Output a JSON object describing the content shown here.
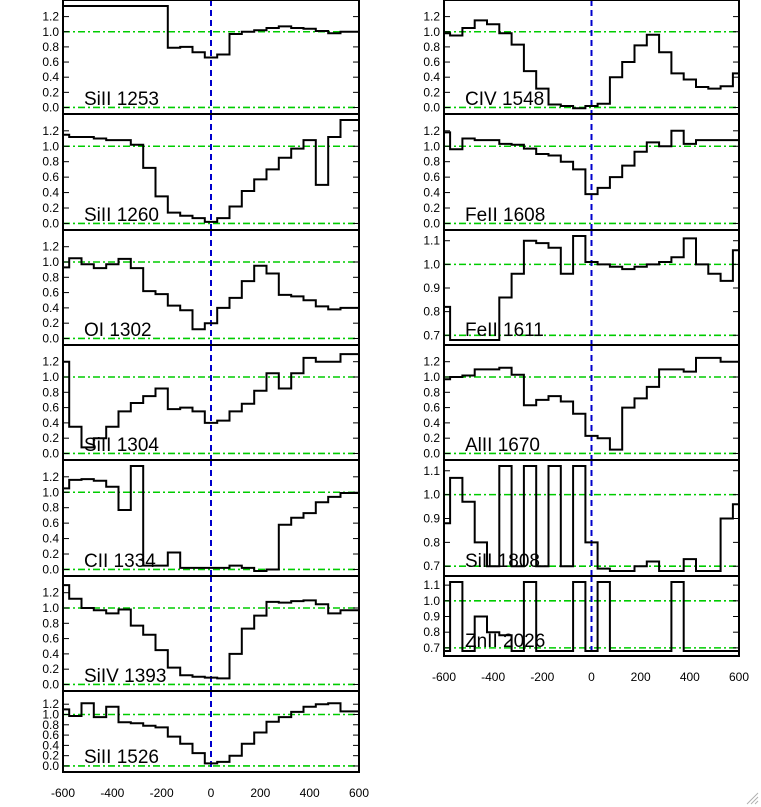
{
  "chart_data": [
    {
      "type": "line",
      "label": "SiII 1253",
      "yticks": [
        "0.0",
        "0.2",
        "0.4",
        "0.6",
        "0.8",
        "1.0",
        "1.2"
      ],
      "ylim": [
        -0.02,
        1.34
      ],
      "x": [
        -600,
        -550,
        -500,
        -450,
        -400,
        -350,
        -300,
        -250,
        -200,
        -150,
        -100,
        -50,
        0,
        50,
        100,
        150,
        200,
        250,
        300,
        350,
        400,
        450,
        500,
        550,
        600
      ],
      "values": [
        1.34,
        1.34,
        1.34,
        1.34,
        1.34,
        1.34,
        1.34,
        1.34,
        1.34,
        0.79,
        0.8,
        0.73,
        0.66,
        0.7,
        0.97,
        1.0,
        1.02,
        1.05,
        1.07,
        1.05,
        1.04,
        1.01,
        0.98,
        1.0,
        1.0
      ]
    },
    {
      "type": "line",
      "label": "SiII 1260",
      "yticks": [
        "0.0",
        "0.2",
        "0.4",
        "0.6",
        "0.8",
        "1.0",
        "1.2"
      ],
      "ylim": [
        -0.02,
        1.34
      ],
      "x": [
        -600,
        -550,
        -500,
        -450,
        -400,
        -350,
        -300,
        -250,
        -200,
        -150,
        -100,
        -50,
        0,
        50,
        100,
        150,
        200,
        250,
        300,
        350,
        400,
        450,
        500,
        550,
        600
      ],
      "values": [
        1.15,
        1.12,
        1.12,
        1.1,
        1.08,
        1.08,
        1.02,
        0.72,
        0.35,
        0.14,
        0.1,
        0.07,
        0.02,
        0.07,
        0.22,
        0.42,
        0.57,
        0.7,
        0.85,
        0.97,
        1.08,
        0.5,
        1.12,
        1.34,
        1.34
      ]
    },
    {
      "type": "line",
      "label": "OI 1302",
      "yticks": [
        "0.0",
        "0.2",
        "0.4",
        "0.6",
        "0.8",
        "1.0",
        "1.2"
      ],
      "ylim": [
        -0.02,
        1.34
      ],
      "x": [
        -600,
        -550,
        -500,
        -450,
        -400,
        -350,
        -300,
        -250,
        -200,
        -150,
        -100,
        -50,
        0,
        50,
        100,
        150,
        200,
        250,
        300,
        350,
        400,
        450,
        500,
        550,
        600
      ],
      "values": [
        0.93,
        1.05,
        0.97,
        0.92,
        0.97,
        1.04,
        0.92,
        0.62,
        0.58,
        0.43,
        0.37,
        0.12,
        0.2,
        0.4,
        0.53,
        0.75,
        0.95,
        0.85,
        0.57,
        0.55,
        0.5,
        0.42,
        0.38,
        0.4,
        0.4
      ]
    },
    {
      "type": "line",
      "label": "SiII 1304",
      "yticks": [
        "0.0",
        "0.2",
        "0.4",
        "0.6",
        "0.8",
        "1.0",
        "1.2"
      ],
      "ylim": [
        -0.02,
        1.34
      ],
      "x": [
        -600,
        -550,
        -500,
        -450,
        -400,
        -350,
        -300,
        -250,
        -200,
        -150,
        -100,
        -50,
        0,
        50,
        100,
        150,
        200,
        250,
        300,
        350,
        400,
        450,
        500,
        550,
        600
      ],
      "values": [
        1.2,
        0.35,
        0.08,
        0.2,
        0.35,
        0.55,
        0.66,
        0.75,
        0.85,
        0.58,
        0.6,
        0.55,
        0.4,
        0.43,
        0.55,
        0.65,
        0.82,
        1.05,
        0.85,
        1.05,
        1.25,
        1.2,
        1.2,
        1.3,
        1.3
      ]
    },
    {
      "type": "line",
      "label": "CII 1334",
      "yticks": [
        "0.0",
        "0.2",
        "0.4",
        "0.6",
        "0.8",
        "1.0",
        "1.2"
      ],
      "ylim": [
        -0.02,
        1.34
      ],
      "x": [
        -600,
        -550,
        -500,
        -450,
        -400,
        -350,
        -300,
        -250,
        -200,
        -150,
        -100,
        -50,
        0,
        50,
        100,
        150,
        200,
        250,
        300,
        350,
        400,
        450,
        500,
        550,
        600
      ],
      "values": [
        1.05,
        1.16,
        1.17,
        1.15,
        1.07,
        0.77,
        1.34,
        0.05,
        0.05,
        0.22,
        0.02,
        0.02,
        0.02,
        0.02,
        0.05,
        0.02,
        -0.02,
        0.0,
        0.58,
        0.67,
        0.73,
        0.87,
        0.94,
        0.99,
        0.99
      ]
    },
    {
      "type": "line",
      "label": "SiIV 1393",
      "yticks": [
        "0.0",
        "0.2",
        "0.4",
        "0.6",
        "0.8",
        "1.0",
        "1.2"
      ],
      "ylim": [
        -0.02,
        1.34
      ],
      "x": [
        -600,
        -550,
        -500,
        -450,
        -400,
        -350,
        -300,
        -250,
        -200,
        -150,
        -100,
        -50,
        0,
        50,
        100,
        150,
        200,
        250,
        300,
        350,
        400,
        450,
        500,
        550,
        600
      ],
      "values": [
        1.3,
        1.12,
        1.0,
        0.97,
        0.93,
        0.98,
        0.77,
        0.65,
        0.45,
        0.22,
        0.12,
        0.1,
        0.09,
        0.08,
        0.4,
        0.73,
        0.9,
        1.08,
        1.07,
        1.09,
        1.1,
        1.05,
        0.93,
        0.97,
        0.97
      ]
    },
    {
      "type": "line",
      "label": "SiII 1526",
      "yticks": [
        "0.0",
        "0.2",
        "0.4",
        "0.6",
        "0.8",
        "1.0",
        "1.2"
      ],
      "ylim": [
        -0.02,
        1.34
      ],
      "x": [
        -600,
        -550,
        -500,
        -450,
        -400,
        -350,
        -300,
        -250,
        -200,
        -150,
        -100,
        -50,
        0,
        50,
        100,
        150,
        200,
        250,
        300,
        350,
        400,
        450,
        500,
        550,
        600
      ],
      "values": [
        1.1,
        0.97,
        1.22,
        0.95,
        1.15,
        0.85,
        0.83,
        0.78,
        0.75,
        0.57,
        0.43,
        0.25,
        0.05,
        0.08,
        0.2,
        0.43,
        0.65,
        0.86,
        0.95,
        1.05,
        1.15,
        1.2,
        1.22,
        1.06,
        1.06
      ]
    },
    {
      "type": "line",
      "label": "CIV 1548",
      "yticks": [
        "0.0",
        "0.2",
        "0.4",
        "0.6",
        "0.8",
        "1.0",
        "1.2"
      ],
      "ylim": [
        -0.02,
        1.34
      ],
      "x": [
        -600,
        -550,
        -500,
        -450,
        -400,
        -350,
        -300,
        -250,
        -200,
        -150,
        -100,
        -50,
        0,
        50,
        100,
        150,
        200,
        250,
        300,
        350,
        400,
        450,
        500,
        550,
        600
      ],
      "values": [
        0.98,
        0.95,
        1.05,
        1.15,
        1.1,
        0.98,
        0.83,
        0.48,
        0.25,
        0.04,
        0.02,
        -0.01,
        0.02,
        0.05,
        0.4,
        0.6,
        0.82,
        0.96,
        0.73,
        0.45,
        0.37,
        0.27,
        0.25,
        0.28,
        0.45
      ]
    },
    {
      "type": "line",
      "label": "FeII 1608",
      "yticks": [
        "0.0",
        "0.2",
        "0.4",
        "0.6",
        "0.8",
        "1.0",
        "1.2"
      ],
      "ylim": [
        -0.02,
        1.34
      ],
      "x": [
        -600,
        -550,
        -500,
        -450,
        -400,
        -350,
        -300,
        -250,
        -200,
        -150,
        -100,
        -50,
        0,
        50,
        100,
        150,
        200,
        250,
        300,
        350,
        400,
        450,
        500,
        550,
        600
      ],
      "values": [
        1.18,
        0.96,
        1.1,
        1.08,
        1.08,
        1.03,
        1.02,
        0.97,
        0.9,
        0.88,
        0.8,
        0.7,
        0.38,
        0.46,
        0.6,
        0.75,
        0.93,
        1.05,
        1.0,
        1.2,
        1.03,
        1.08,
        1.08,
        1.08,
        1.08
      ]
    },
    {
      "type": "line",
      "label": "FeII 1611",
      "yticks": [
        "0.7",
        "0.8",
        "0.9",
        "1.0",
        "1.1"
      ],
      "ylim": [
        0.68,
        1.12
      ],
      "x": [
        -600,
        -550,
        -500,
        -450,
        -400,
        -350,
        -300,
        -250,
        -200,
        -150,
        -100,
        -50,
        0,
        50,
        100,
        150,
        200,
        250,
        300,
        350,
        400,
        450,
        500,
        550,
        600
      ],
      "values": [
        0.82,
        0.68,
        0.68,
        0.68,
        0.68,
        0.86,
        0.96,
        1.1,
        1.09,
        1.07,
        0.96,
        1.12,
        1.01,
        1.0,
        0.99,
        0.98,
        0.99,
        1.0,
        1.01,
        1.03,
        1.11,
        1.0,
        0.96,
        0.93,
        1.06
      ]
    },
    {
      "type": "line",
      "label": "AlII 1670",
      "yticks": [
        "0.0",
        "0.2",
        "0.4",
        "0.6",
        "0.8",
        "1.0",
        "1.2"
      ],
      "ylim": [
        -0.02,
        1.34
      ],
      "x": [
        -600,
        -550,
        -500,
        -450,
        -400,
        -350,
        -300,
        -250,
        -200,
        -150,
        -100,
        -50,
        0,
        50,
        100,
        150,
        200,
        250,
        300,
        350,
        400,
        450,
        500,
        550,
        600
      ],
      "values": [
        0.97,
        1.0,
        1.02,
        1.1,
        1.1,
        1.12,
        1.03,
        0.63,
        0.7,
        0.75,
        0.68,
        0.52,
        0.23,
        0.2,
        0.05,
        0.6,
        0.72,
        0.87,
        1.1,
        1.1,
        1.07,
        1.25,
        1.25,
        1.2,
        1.2
      ]
    },
    {
      "type": "line",
      "label": "SiII 1808",
      "yticks": [
        "0.7",
        "0.8",
        "0.9",
        "1.0",
        "1.1"
      ],
      "ylim": [
        0.68,
        1.12
      ],
      "x": [
        -600,
        -550,
        -500,
        -450,
        -400,
        -350,
        -300,
        -250,
        -200,
        -150,
        -100,
        -50,
        0,
        50,
        100,
        150,
        200,
        250,
        300,
        350,
        400,
        450,
        500,
        550,
        600
      ],
      "values": [
        0.88,
        1.07,
        0.97,
        0.8,
        0.7,
        1.12,
        0.7,
        1.12,
        0.7,
        1.12,
        0.7,
        1.12,
        0.8,
        0.69,
        0.68,
        0.66,
        0.7,
        0.72,
        0.68,
        0.68,
        0.73,
        0.68,
        0.68,
        0.9,
        0.96
      ]
    },
    {
      "type": "line",
      "label": "ZnII 2026",
      "yticks": [
        "0.7",
        "0.8",
        "0.9",
        "1.0",
        "1.1"
      ],
      "ylim": [
        0.68,
        1.12
      ],
      "x": [
        -600,
        -550,
        -500,
        -450,
        -400,
        -350,
        -300,
        -250,
        -200,
        -150,
        -100,
        -50,
        0,
        50,
        100,
        150,
        200,
        250,
        300,
        350,
        400,
        450,
        500,
        550,
        600
      ],
      "values": [
        0.68,
        1.12,
        0.68,
        0.9,
        0.8,
        0.78,
        0.68,
        1.12,
        0.68,
        0.68,
        0.68,
        1.12,
        0.68,
        1.12,
        0.68,
        0.68,
        0.68,
        0.68,
        0.68,
        1.12,
        0.68,
        0.68,
        0.68,
        0.68,
        0.68
      ]
    }
  ],
  "xticks_left": [
    "-600",
    "-400",
    "-200",
    "0",
    "200",
    "400",
    "600"
  ],
  "xticks_right": [
    "-600",
    "-400",
    "-200",
    "0",
    "200",
    "400",
    "600"
  ],
  "style": {
    "line_color": "#000000",
    "zero_line_color": "#0000cc",
    "reference_line_color": "#00cc00"
  }
}
